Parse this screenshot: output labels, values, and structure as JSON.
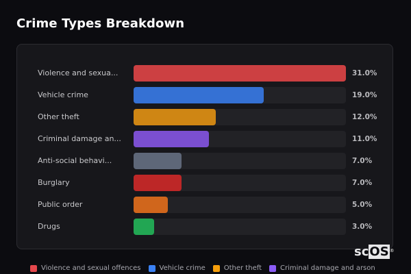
{
  "title": "Crime Types Breakdown",
  "chart_data": {
    "type": "bar",
    "orientation": "horizontal",
    "title": "Crime Types Breakdown",
    "categories": [
      "Violence and sexual offences",
      "Vehicle crime",
      "Other theft",
      "Criminal damage and arson",
      "Anti-social behaviour",
      "Burglary",
      "Public order",
      "Drugs"
    ],
    "display_labels": [
      "Violence and sexua...",
      "Vehicle crime",
      "Other theft",
      "Criminal damage an...",
      "Anti-social behavi...",
      "Burglary",
      "Public order",
      "Drugs"
    ],
    "values": [
      31.0,
      19.0,
      12.0,
      11.0,
      7.0,
      7.0,
      5.0,
      3.0
    ],
    "value_labels": [
      "31.0%",
      "19.0%",
      "12.0%",
      "11.0%",
      "7.0%",
      "7.0%",
      "5.0%",
      "3.0%"
    ],
    "colors": [
      "#cc4042",
      "#3571d4",
      "#cf8614",
      "#7b4fd1",
      "#5e6778",
      "#bd2727",
      "#d0661c",
      "#22a653"
    ],
    "xlabel": "",
    "ylabel": "",
    "xlim": [
      0,
      31
    ],
    "grid": false,
    "legend": {
      "position": "bottom",
      "entries": [
        {
          "label": "Violence and sexual offences",
          "color": "#e5484d"
        },
        {
          "label": "Vehicle crime",
          "color": "#3b82f6"
        },
        {
          "label": "Other theft",
          "color": "#f59e0b"
        },
        {
          "label": "Criminal damage and arson",
          "color": "#8b5cf6"
        }
      ]
    }
  },
  "brand": {
    "prefix": "sc",
    "highlight": "OS",
    "mark": "®"
  }
}
